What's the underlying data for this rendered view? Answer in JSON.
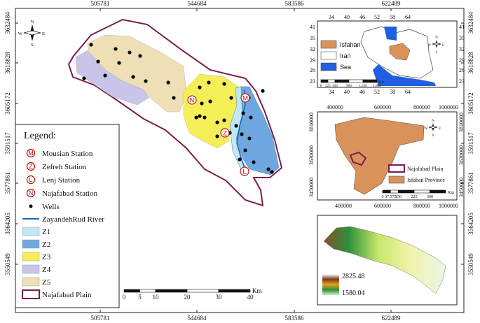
{
  "main_map": {
    "x_ticks": [
      505781,
      544684,
      583586,
      622489
    ],
    "y_ticks": [
      3632484,
      3618828,
      3605172,
      3591517,
      3577861,
      3564205,
      3550549
    ],
    "compass": {
      "n": "N",
      "s": "S",
      "e": "E",
      "w": "W"
    },
    "legend": {
      "title": "Legend:",
      "stations": [
        {
          "symbol": "M",
          "label": "Mousian Station"
        },
        {
          "symbol": "Z",
          "label": "Zefreh Station"
        },
        {
          "symbol": "L",
          "label": "Lenj Station"
        },
        {
          "symbol": "N",
          "label": "Najafabad Station"
        }
      ],
      "wells": "Wells",
      "river": "ZayandehRud River",
      "zones": [
        "Z1",
        "Z2",
        "Z3",
        "Z4",
        "Z5"
      ],
      "plain": "Najafabad Plain"
    },
    "scale_bar": {
      "labels": [
        0,
        5,
        10,
        20,
        30,
        40
      ],
      "unit": "Km"
    }
  },
  "iran_inset": {
    "x_ticks": [
      34,
      40,
      46,
      52,
      58,
      64
    ],
    "y_ticks": [
      41,
      35,
      32,
      29,
      26,
      23
    ],
    "legend": [
      "Isfahan",
      "Iran",
      "Sea"
    ],
    "scale_bar": {
      "labels": [
        0,
        225,
        450,
        "900",
        "1,350",
        "1,800"
      ],
      "unit": "Km"
    },
    "compass": {
      "n": "N",
      "s": "S",
      "e": "E",
      "w": "W"
    }
  },
  "province_inset": {
    "x_ticks": [
      400000,
      600000,
      800000,
      1000000
    ],
    "y_ticks": [
      3810000,
      3630000,
      3450000
    ],
    "legend": [
      "Najafabad Plain",
      "Isfahan Province"
    ],
    "scale_bar": {
      "labels": [
        0,
        37.575,
        150,
        225,
        300
      ],
      "unit": "Km"
    },
    "compass": {
      "n": "N",
      "s": "S",
      "e": "E",
      "w": "W"
    }
  },
  "dem_inset": {
    "legend": {
      "high": 2825.48,
      "low": 1580.04
    }
  }
}
